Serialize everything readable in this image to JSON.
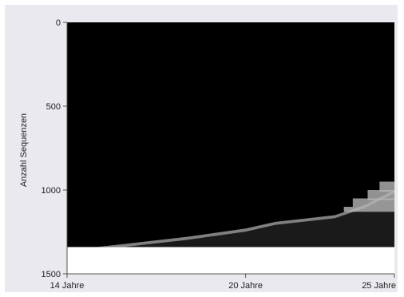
{
  "chart_data": {
    "type": "area",
    "title": "",
    "xlabel": "",
    "ylabel": "Anzahl Sequenzen",
    "x_ticks": [
      "14 Jahre",
      "20 Jahre",
      "25 Jahre"
    ],
    "x_tick_values": [
      14,
      20,
      25
    ],
    "xlim": [
      14,
      25
    ],
    "y_ticks": [
      "0",
      "500",
      "1000",
      "1500"
    ],
    "y_tick_values": [
      0,
      500,
      1000,
      1500
    ],
    "ylim": [
      0,
      1500
    ],
    "y_inverted": true,
    "n_sequences": 1340,
    "grid": false,
    "colors": {
      "dominant_state": "#000000",
      "secondary_state": "#808080",
      "light_state": "#b5b5b5",
      "background": "#e9e9ef",
      "plot_bg": "#ffffff"
    },
    "series": [
      {
        "color_key": "secondary_state",
        "x": [
          14,
          15,
          16,
          17,
          18,
          19,
          20,
          21,
          22,
          23,
          24,
          25
        ],
        "y": [
          1340,
          1340,
          1320,
          1300,
          1280,
          1255,
          1230,
          1190,
          1170,
          1150,
          1090,
          1000
        ]
      }
    ]
  }
}
